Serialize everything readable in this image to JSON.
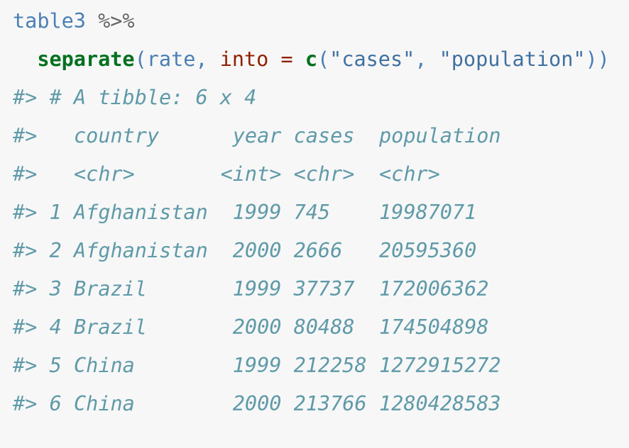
{
  "code": [
    [
      {
        "text": "table3",
        "color": "#4a7fb5",
        "bold": false
      },
      {
        "text": " %>%",
        "color": "#666666",
        "bold": false
      }
    ],
    [
      {
        "text": "  separate",
        "color": "#007020",
        "bold": true
      },
      {
        "text": "(rate, ",
        "color": "#4a7fb5",
        "bold": false
      },
      {
        "text": "into",
        "color": "#902000",
        "bold": false
      },
      {
        "text": " = ",
        "color": "#902000",
        "bold": false
      },
      {
        "text": "c",
        "color": "#007020",
        "bold": true
      },
      {
        "text": "(",
        "color": "#4a7fb5",
        "bold": false
      },
      {
        "text": "\"cases\"",
        "color": "#4070a0",
        "bold": false
      },
      {
        "text": ", ",
        "color": "#4a7fb5",
        "bold": false
      },
      {
        "text": "\"population\"",
        "color": "#4070a0",
        "bold": false
      },
      {
        "text": "))",
        "color": "#4a7fb5",
        "bold": false
      }
    ]
  ],
  "output": {
    "prefix": "#>",
    "color": "#5f9aa8",
    "title": "# A tibble: 6 x 4",
    "columns": [
      "country",
      "year",
      "cases",
      "population"
    ],
    "types": [
      "<chr>",
      "<int>",
      "<chr>",
      "<chr>"
    ],
    "rows": [
      [
        1,
        "Afghanistan",
        1999,
        745,
        19987071
      ],
      [
        2,
        "Afghanistan",
        2000,
        2666,
        20595360
      ],
      [
        3,
        "Brazil",
        1999,
        37737,
        172006362
      ],
      [
        4,
        "Brazil",
        2000,
        80488,
        174504898
      ],
      [
        5,
        "China",
        1999,
        212258,
        1272915272
      ],
      [
        6,
        "China",
        2000,
        213766,
        1280428583
      ]
    ]
  }
}
